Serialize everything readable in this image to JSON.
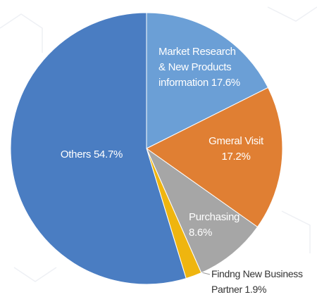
{
  "chart_data": {
    "type": "pie",
    "categories": [
      "Market Research & New Products information",
      "Gmeral Visit",
      "Purchasing",
      "Findng New Business Partner",
      "Others"
    ],
    "values": [
      17.6,
      17.2,
      8.6,
      1.9,
      54.7
    ],
    "value_labels": [
      "17.6%",
      "17.2%",
      "8.6%",
      "1.9%",
      "54.7%"
    ],
    "colors": [
      "#6b9fd6",
      "#e07f33",
      "#a6a6a6",
      "#efb50f",
      "#4a7dc2"
    ]
  }
}
